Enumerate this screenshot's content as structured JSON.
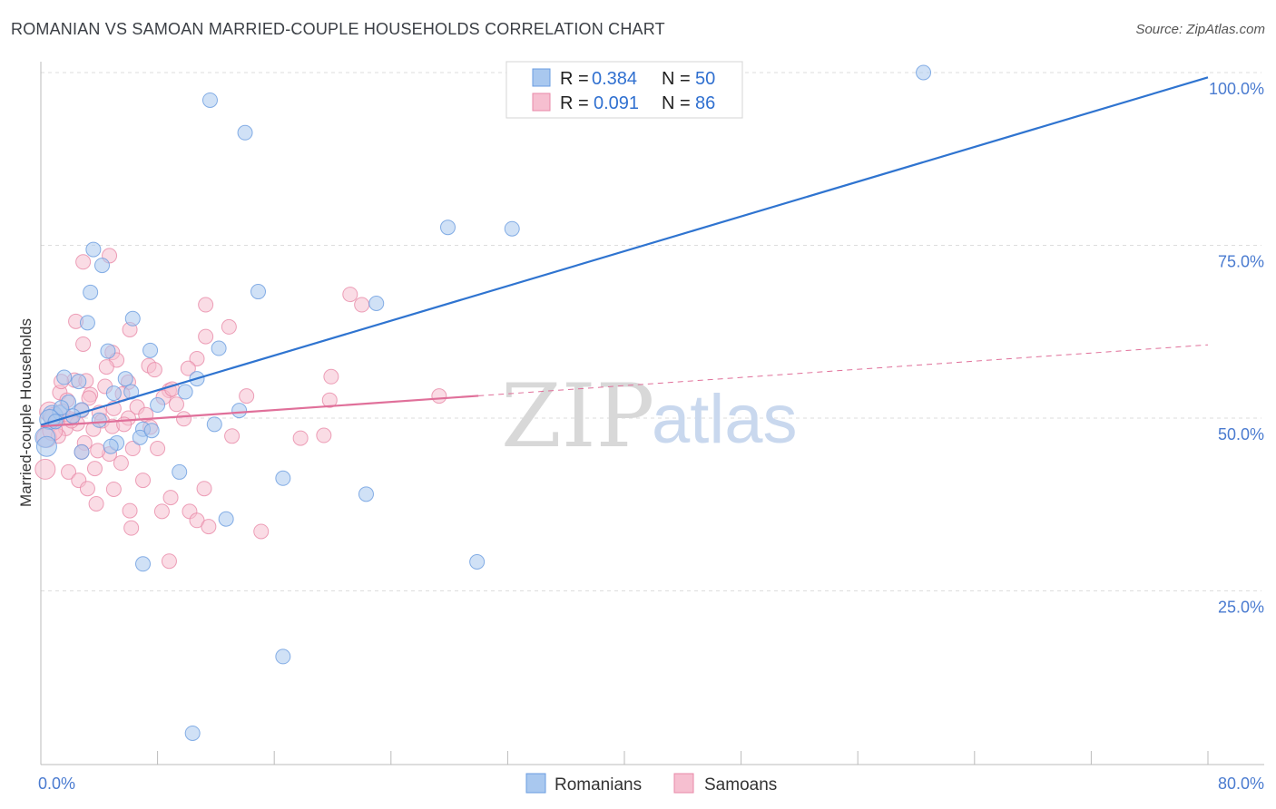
{
  "title": "ROMANIAN VS SAMOAN MARRIED-COUPLE HOUSEHOLDS CORRELATION CHART",
  "source": "Source: ZipAtlas.com",
  "watermark": {
    "zip": "ZIP",
    "atlas": "atlas"
  },
  "colors": {
    "blue_fill": "#a9c8ef",
    "blue_stroke": "#6a9ce0",
    "blue_line": "#2f74d0",
    "pink_fill": "#f6bfd0",
    "pink_stroke": "#e88aa8",
    "pink_line": "#e0709a",
    "grid": "#dddddd",
    "tick": "#4a7bd0"
  },
  "stats": [
    {
      "r_label": "R =",
      "r_value": "0.384",
      "n_label": "N =",
      "n_value": "50",
      "series": "Romanians"
    },
    {
      "r_label": "R =",
      "r_value": "0.091",
      "n_label": "N =",
      "n_value": "86",
      "series": "Samoans"
    }
  ],
  "chart_data": {
    "type": "scatter",
    "title": "ROMANIAN VS SAMOAN MARRIED-COUPLE HOUSEHOLDS CORRELATION CHART",
    "xlabel": "",
    "ylabel": "Married-couple Households",
    "xlim": [
      0,
      80
    ],
    "ylim": [
      0,
      103
    ],
    "x_tick_labels": [
      {
        "value": 0,
        "label": "0.0%"
      },
      {
        "value": 80,
        "label": "80.0%"
      }
    ],
    "y_tick_labels": [
      {
        "value": 100,
        "label": "100.0%"
      },
      {
        "value": 75,
        "label": "75.0%"
      },
      {
        "value": 50,
        "label": "50.0%"
      },
      {
        "value": 25,
        "label": "25.0%"
      }
    ],
    "legend": [
      "Romanians",
      "Samoans"
    ],
    "series": [
      {
        "name": "Romanians",
        "trend": {
          "x0": 0,
          "y0": 49.0,
          "x1": 80,
          "y1": 99.3,
          "solid_to": 80
        },
        "points": [
          [
            60.5,
            100
          ],
          [
            11.6,
            96
          ],
          [
            14,
            91.3
          ],
          [
            27.9,
            77.6
          ],
          [
            32.3,
            77.4
          ],
          [
            3.6,
            74.4
          ],
          [
            4.2,
            72.1
          ],
          [
            3.4,
            68.2
          ],
          [
            14.9,
            68.3
          ],
          [
            23,
            66.6
          ],
          [
            3.2,
            63.8
          ],
          [
            6.3,
            64.4
          ],
          [
            4.6,
            59.7
          ],
          [
            7.5,
            59.8
          ],
          [
            12.2,
            60.1
          ],
          [
            1.6,
            55.9
          ],
          [
            2.6,
            55.3
          ],
          [
            5.8,
            55.7
          ],
          [
            10.7,
            55.7
          ],
          [
            0.8,
            50.4
          ],
          [
            1.3,
            50.8
          ],
          [
            1.9,
            52.3
          ],
          [
            5,
            53.6
          ],
          [
            6.2,
            53.8
          ],
          [
            9.9,
            53.8
          ],
          [
            1.4,
            51.5
          ],
          [
            2.8,
            51.2
          ],
          [
            8,
            51.9
          ],
          [
            13.6,
            51.1
          ],
          [
            0.6,
            49.8
          ],
          [
            1.0,
            49.5
          ],
          [
            2.2,
            50.3
          ],
          [
            4.0,
            49.7
          ],
          [
            7,
            48.4
          ],
          [
            11.9,
            49.1
          ],
          [
            0.3,
            47.2
          ],
          [
            0.4,
            45.9
          ],
          [
            5.2,
            46.4
          ],
          [
            6.8,
            47.2
          ],
          [
            2.8,
            45.1
          ],
          [
            4.8,
            45.9
          ],
          [
            9.5,
            42.2
          ],
          [
            16.6,
            41.3
          ],
          [
            22.3,
            39
          ],
          [
            12.7,
            35.4
          ],
          [
            7.0,
            28.9
          ],
          [
            29.9,
            29.2
          ],
          [
            16.6,
            15.5
          ],
          [
            10.4,
            4.4
          ],
          [
            7.6,
            48.2
          ]
        ]
      },
      {
        "name": "Samoans",
        "trend": {
          "x0": 0,
          "y0": 48.8,
          "x1": 80,
          "y1": 60.6,
          "solid_to": 30
        },
        "points": [
          [
            2.9,
            72.6
          ],
          [
            4.7,
            73.5
          ],
          [
            11.3,
            66.4
          ],
          [
            21.2,
            67.9
          ],
          [
            22,
            66.4
          ],
          [
            2.4,
            64
          ],
          [
            11.3,
            61.8
          ],
          [
            12.9,
            63.2
          ],
          [
            6.1,
            62.8
          ],
          [
            2.9,
            60.7
          ],
          [
            4.9,
            59.5
          ],
          [
            10.7,
            58.6
          ],
          [
            5.2,
            58.4
          ],
          [
            7.4,
            57.6
          ],
          [
            10.1,
            57.2
          ],
          [
            4.5,
            57.4
          ],
          [
            7.8,
            57
          ],
          [
            2.3,
            55.5
          ],
          [
            3.1,
            55.4
          ],
          [
            6.0,
            55.2
          ],
          [
            19.9,
            56
          ],
          [
            4.4,
            54.6
          ],
          [
            8.8,
            54
          ],
          [
            1.3,
            53.7
          ],
          [
            3.4,
            53.4
          ],
          [
            5.6,
            53.5
          ],
          [
            8.4,
            53
          ],
          [
            14.1,
            53.2
          ],
          [
            19.8,
            52.6
          ],
          [
            27.3,
            53.2
          ],
          [
            1.8,
            52.6
          ],
          [
            3.3,
            52.9
          ],
          [
            5.0,
            51.4
          ],
          [
            6.6,
            51.6
          ],
          [
            9.3,
            52
          ],
          [
            0.6,
            50.9
          ],
          [
            1.5,
            51.0
          ],
          [
            2.8,
            51.1
          ],
          [
            4.0,
            50.8
          ],
          [
            7.2,
            50.5
          ],
          [
            0.9,
            50.1
          ],
          [
            2.0,
            49.9
          ],
          [
            4.2,
            49.6
          ],
          [
            6.0,
            50.0
          ],
          [
            9.8,
            49.9
          ],
          [
            1.1,
            49.6
          ],
          [
            2.5,
            49.2
          ],
          [
            4.9,
            48.8
          ],
          [
            7.5,
            48.7
          ],
          [
            1.7,
            48.5
          ],
          [
            3.6,
            48.4
          ],
          [
            13.1,
            47.4
          ],
          [
            17.8,
            47.1
          ],
          [
            19.4,
            47.5
          ],
          [
            0.4,
            47.2
          ],
          [
            1.2,
            47.4
          ],
          [
            3.0,
            46.4
          ],
          [
            6.3,
            45.6
          ],
          [
            8.0,
            45.6
          ],
          [
            2.8,
            45.1
          ],
          [
            4.7,
            44.8
          ],
          [
            5.5,
            43.5
          ],
          [
            3.7,
            42.7
          ],
          [
            1.9,
            42.2
          ],
          [
            0.3,
            42.6
          ],
          [
            2.6,
            41.0
          ],
          [
            7.0,
            41.0
          ],
          [
            3.2,
            39.8
          ],
          [
            5.0,
            39.7
          ],
          [
            11.2,
            39.8
          ],
          [
            8.9,
            38.5
          ],
          [
            3.8,
            37.6
          ],
          [
            6.1,
            36.6
          ],
          [
            8.3,
            36.5
          ],
          [
            10.2,
            36.5
          ],
          [
            10.7,
            35.2
          ],
          [
            6.2,
            34.1
          ],
          [
            11.5,
            34.3
          ],
          [
            15.1,
            33.6
          ],
          [
            8.8,
            29.3
          ],
          [
            1.4,
            55.3
          ],
          [
            2.1,
            49.6
          ],
          [
            0.8,
            48.2
          ],
          [
            3.9,
            45.3
          ],
          [
            5.7,
            49.1
          ],
          [
            9.0,
            54.2
          ]
        ]
      }
    ]
  }
}
